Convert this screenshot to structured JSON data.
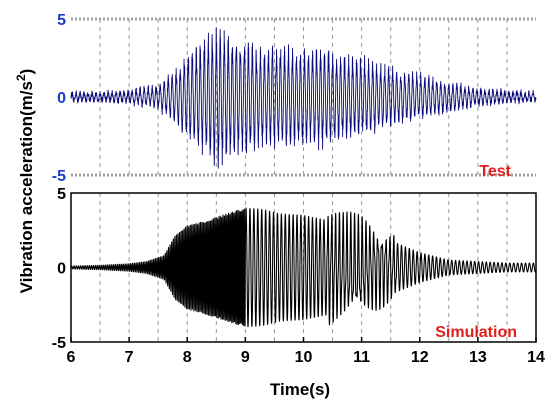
{
  "chart_data": [
    {
      "type": "line",
      "panel": "top",
      "label": "Test",
      "ylim": [
        -5,
        5
      ],
      "y_ticks": [
        "5",
        "0",
        "-5"
      ],
      "xlim": [
        6,
        14
      ],
      "grid": "vertical dashed",
      "colors": {
        "line": "#0a0a78",
        "tick_labels": "#1a3ccc",
        "label": "#e0201c",
        "grid": "#999999"
      },
      "envelope": {
        "t": [
          6.0,
          6.5,
          7.0,
          7.5,
          7.8,
          8.0,
          8.3,
          8.5,
          8.7,
          9.0,
          9.3,
          9.6,
          10.0,
          10.3,
          10.6,
          11.0,
          11.5,
          12.0,
          12.5,
          13.0,
          13.5,
          14.0
        ],
        "amplitude": [
          0.3,
          0.3,
          0.4,
          0.8,
          1.8,
          2.8,
          4.0,
          4.6,
          4.2,
          3.8,
          3.3,
          3.4,
          3.1,
          3.5,
          2.9,
          2.6,
          2.0,
          1.5,
          1.0,
          0.6,
          0.4,
          0.3
        ]
      }
    },
    {
      "type": "line",
      "panel": "bottom",
      "label": "Simulation",
      "ylim": [
        -5,
        5
      ],
      "y_ticks": [
        "5",
        "0",
        "-5"
      ],
      "xlim": [
        6,
        14
      ],
      "x_ticks": [
        "6",
        "7",
        "8",
        "9",
        "10",
        "11",
        "12",
        "13",
        "14"
      ],
      "grid": "vertical dashed",
      "colors": {
        "line": "#000000",
        "tick_labels": "#000000",
        "label": "#e0201c",
        "grid": "#999999"
      },
      "envelope": {
        "t": [
          6.0,
          6.5,
          7.0,
          7.3,
          7.6,
          7.8,
          8.0,
          8.3,
          8.6,
          9.0,
          9.3,
          9.6,
          10.0,
          10.5,
          11.0,
          11.5,
          12.0,
          12.5,
          13.0,
          13.5,
          14.0
        ],
        "amplitude": [
          0.1,
          0.15,
          0.25,
          0.4,
          0.8,
          2.2,
          2.8,
          3.1,
          3.5,
          4.0,
          3.9,
          3.6,
          3.5,
          3.1,
          2.6,
          1.8,
          1.0,
          0.5,
          0.4,
          0.3,
          0.3
        ]
      }
    }
  ],
  "axes": {
    "ylabel": "Vibration acceleration(m/s",
    "ylabel_sup": "2",
    "ylabel_tail": ")",
    "xlabel": "Time(s)"
  }
}
